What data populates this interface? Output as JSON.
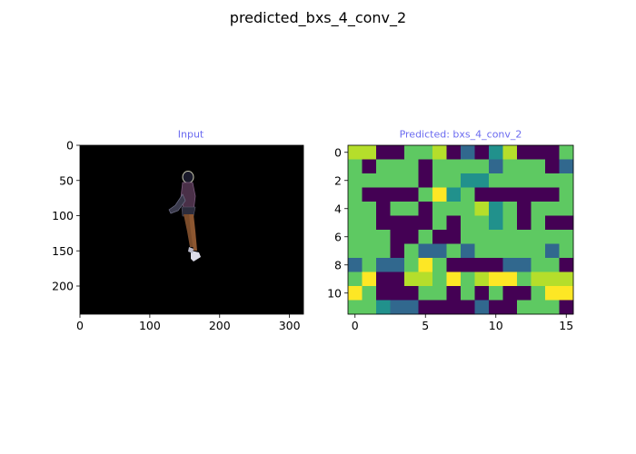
{
  "figure": {
    "suptitle": "predicted_bxs_4_conv_2"
  },
  "chart_data": [
    {
      "type": "image",
      "title": "Input",
      "title_color": "#6b6bf0",
      "background": "#000000",
      "image_size": [
        320,
        240
      ],
      "xticks": [
        0,
        100,
        200,
        300
      ],
      "yticks": [
        0,
        50,
        100,
        150,
        200
      ],
      "xlim": [
        0,
        320
      ],
      "ylim": [
        240,
        0
      ],
      "subject": "person-figure"
    },
    {
      "type": "heatmap",
      "title": "Predicted: bxs_4_conv_2",
      "title_color": "#6b6bf0",
      "colormap": "viridis",
      "palette": {
        "0": "#440154",
        "1": "#31688e",
        "2": "#21918c",
        "3": "#5ec962",
        "4": "#b5de2b",
        "5": "#fde725"
      },
      "xticks": [
        0,
        5,
        10,
        15
      ],
      "yticks": [
        0,
        2,
        4,
        6,
        8,
        10
      ],
      "grid": [
        [
          4,
          4,
          0,
          0,
          3,
          3,
          4,
          0,
          1,
          0,
          2,
          4,
          0,
          0,
          0,
          3
        ],
        [
          3,
          0,
          3,
          3,
          3,
          0,
          3,
          3,
          3,
          3,
          1,
          3,
          3,
          3,
          0,
          1
        ],
        [
          3,
          3,
          3,
          3,
          3,
          0,
          3,
          3,
          2,
          2,
          3,
          3,
          3,
          3,
          3,
          3
        ],
        [
          3,
          0,
          0,
          0,
          0,
          3,
          5,
          2,
          3,
          0,
          0,
          0,
          0,
          0,
          0,
          3
        ],
        [
          3,
          3,
          0,
          3,
          3,
          0,
          3,
          3,
          3,
          4,
          2,
          3,
          0,
          3,
          3,
          3
        ],
        [
          3,
          3,
          0,
          0,
          0,
          0,
          3,
          0,
          3,
          3,
          2,
          3,
          0,
          3,
          0,
          0
        ],
        [
          3,
          3,
          3,
          0,
          0,
          3,
          0,
          0,
          3,
          3,
          3,
          3,
          3,
          3,
          3,
          3
        ],
        [
          3,
          3,
          3,
          0,
          3,
          1,
          1,
          3,
          1,
          3,
          3,
          3,
          3,
          3,
          1,
          3
        ],
        [
          1,
          3,
          1,
          1,
          3,
          5,
          3,
          0,
          0,
          0,
          0,
          1,
          1,
          3,
          3,
          0
        ],
        [
          3,
          5,
          0,
          0,
          4,
          4,
          3,
          5,
          3,
          4,
          5,
          5,
          3,
          4,
          4,
          4
        ],
        [
          5,
          3,
          0,
          0,
          0,
          3,
          3,
          0,
          3,
          0,
          3,
          0,
          0,
          3,
          5,
          5
        ],
        [
          3,
          3,
          2,
          1,
          1,
          0,
          0,
          0,
          0,
          1,
          0,
          0,
          3,
          3,
          3,
          0
        ]
      ]
    }
  ]
}
